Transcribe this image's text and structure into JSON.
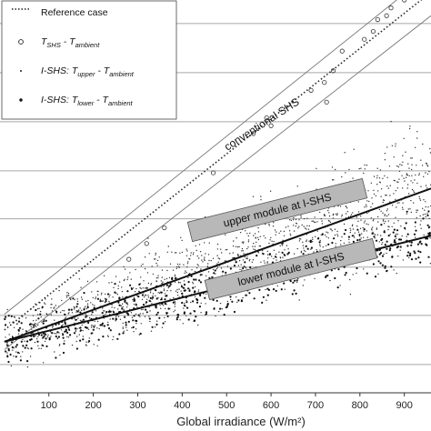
{
  "chart_data": {
    "type": "scatter",
    "xlabel": "Global irradiance (W/m²)",
    "xticks": [
      "100",
      "200",
      "300",
      "400",
      "500",
      "600",
      "700",
      "800",
      "900"
    ],
    "xlim": [
      -10,
      960
    ],
    "ylim": [
      0,
      1
    ],
    "y_gridlines": [
      0.072,
      0.197,
      0.32,
      0.443,
      0.565,
      0.69,
      0.815,
      0.94
    ],
    "legend": {
      "placement": "top-left",
      "entries": [
        {
          "marker": "dotted-line",
          "label": "Reference case"
        },
        {
          "marker": "open-circle",
          "prefix": "T",
          "sub": "SHS",
          "mid": " - T",
          "sub2": "ambient"
        },
        {
          "marker": "small-dot",
          "prefix": "I-SHS: T",
          "sub": "upper",
          "mid": " - T",
          "sub2": "ambient"
        },
        {
          "marker": "large-dot",
          "prefix": "I-SHS: T",
          "sub": "lower",
          "mid": " - T",
          "sub2": "ambient"
        }
      ]
    },
    "annotations": [
      {
        "text": "conventional SHS",
        "boxed": false
      },
      {
        "text": "upper module at I-SHS",
        "boxed": true
      },
      {
        "text": "lower module at I-SHS",
        "boxed": true
      }
    ],
    "series": [
      {
        "marker": "open-circle",
        "points": [
          [
            280,
            0.34
          ],
          [
            320,
            0.38
          ],
          [
            360,
            0.42
          ],
          [
            470,
            0.56
          ],
          [
            560,
            0.66
          ],
          [
            590,
            0.7
          ],
          [
            600,
            0.68
          ],
          [
            690,
            0.77
          ],
          [
            720,
            0.79
          ],
          [
            725,
            0.74
          ],
          [
            740,
            0.82
          ],
          [
            760,
            0.87
          ],
          [
            810,
            0.9
          ],
          [
            830,
            0.92
          ],
          [
            840,
            0.95
          ],
          [
            860,
            0.96
          ],
          [
            870,
            0.98
          ],
          [
            900,
            1.0
          ]
        ]
      },
      {
        "marker": "small-dot",
        "cloud": {
          "x_range": [
            0,
            960
          ],
          "trend_start": 0.13,
          "trend_end": 0.52,
          "spread": 0.11
        }
      },
      {
        "marker": "large-dot",
        "cloud": {
          "x_range": [
            0,
            960
          ],
          "trend_start": 0.13,
          "trend_end": 0.4,
          "spread": 0.05
        }
      }
    ],
    "lines": [
      {
        "role": "reference-dotted",
        "from": [
          0,
          0.16
        ],
        "to": [
          960,
          1.02
        ]
      },
      {
        "role": "band-upper",
        "from": [
          0,
          0.2
        ],
        "to": [
          960,
          1.07
        ]
      },
      {
        "role": "band-lower",
        "from": [
          0,
          0.11
        ],
        "to": [
          960,
          0.96
        ]
      },
      {
        "role": "fit-upper-module",
        "from": [
          0,
          0.13
        ],
        "to": [
          960,
          0.52
        ]
      },
      {
        "role": "fit-lower-module",
        "from": [
          0,
          0.13
        ],
        "to": [
          960,
          0.4
        ]
      }
    ]
  }
}
